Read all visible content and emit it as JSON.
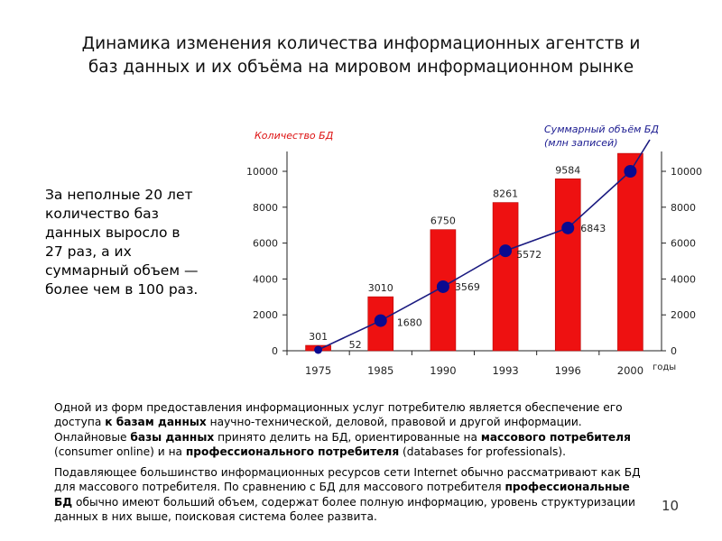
{
  "title": {
    "line1": "Динамика изменения количества информационных агентств и",
    "line2": "баз данных и их объёма на мировом информационном рынке"
  },
  "left_note": [
    "За неполные 20 лет",
    "количество баз",
    "данных выросло в",
    "27 раз, а их",
    "суммарный объем —",
    "более чем в 100 раз."
  ],
  "chart_data": {
    "type": "bar",
    "categories": [
      "1975",
      "1985",
      "1990",
      "1993",
      "1996",
      "2000"
    ],
    "series": [
      {
        "name": "Количество БД",
        "type": "bar",
        "axis": "left",
        "values": [
          301,
          3010,
          6750,
          8261,
          9584,
          11000
        ],
        "labels": [
          "301",
          "3010",
          "6750",
          "8261",
          "9584",
          ""
        ]
      },
      {
        "name": "Суммарный объём БД (млн записей)",
        "type": "line",
        "axis": "right",
        "values": [
          52,
          1680,
          3569,
          5572,
          6843,
          10000
        ],
        "labels": [
          "52",
          "1680",
          "3569",
          "5572",
          "6843",
          ""
        ]
      }
    ],
    "left_axis_label": "Количество БД",
    "right_axis_label_line1": "Суммарный объём БД",
    "right_axis_label_line2": "(млн записей)",
    "xlabel": "годы",
    "left_ticks": [
      0,
      2000,
      4000,
      6000,
      8000,
      10000
    ],
    "right_ticks": [
      0,
      2000,
      4000,
      6000,
      8000,
      10000
    ],
    "ylim": [
      0,
      10000
    ],
    "colors": {
      "bar": "#ee1111",
      "line": "#1a1a80",
      "marker": "#0a0a90",
      "axis_label_left": "#dd1111",
      "axis_label_right": "#1a1a90"
    }
  },
  "paragraph1": {
    "l1": "Одной из форм предоставления информационных услуг потребителю является обеспечение его",
    "l2a": "доступа ",
    "l2b": "к базам данных",
    "l2c": " научно-технической, деловой, правовой и другой информации.",
    "l3a": "Онлайновые ",
    "l3b": "базы данных",
    "l3c": " принято делить на БД, ориентированные на ",
    "l3d": "массового потребителя",
    "l4a": "(consumer online) и на ",
    "l4b": "профессионального потребителя",
    "l4c": " (databases for professionals)."
  },
  "paragraph2": {
    "l1": "Подавляющее большинство информационных ресурсов сети Internet обычно рассматривают как БД",
    "l2a": "для массового потребителя. По сравнению с БД для массового потребителя ",
    "l2b": "профессиональные",
    "l3a": "БД",
    "l3b": " обычно имеют больший объем, содержат более полную информацию, уровень структуризации",
    "l4": "данных в них выше, поисковая система более развита."
  },
  "page_number": "10"
}
